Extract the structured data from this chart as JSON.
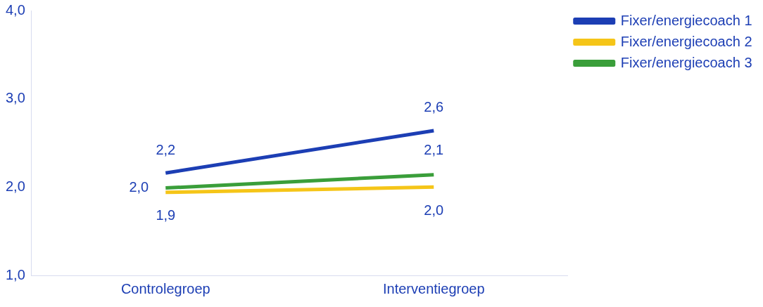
{
  "chart_data": {
    "type": "line",
    "categories": [
      "Controlegroep",
      "Interventiegroep"
    ],
    "series": [
      {
        "name": "Fixer/energiecoach 1",
        "color": "#1c3eb4",
        "values": [
          2.16,
          2.64
        ],
        "value_labels": [
          "2,2",
          "2,6"
        ]
      },
      {
        "name": "Fixer/energiecoach 2",
        "color": "#f5c518",
        "values": [
          1.94,
          2.0
        ],
        "value_labels": [
          "1,9",
          "2,0"
        ]
      },
      {
        "name": "Fixer/energiecoach 3",
        "color": "#3a9e3a",
        "values": [
          1.99,
          2.14
        ],
        "value_labels": [
          "2,0",
          "2,1"
        ]
      }
    ],
    "ylim": [
      1,
      4
    ],
    "yticks": [
      {
        "value": 1,
        "label": "1,0"
      },
      {
        "value": 2,
        "label": "2,0"
      },
      {
        "value": 3,
        "label": "3,0"
      },
      {
        "value": 4,
        "label": "4,0"
      }
    ],
    "grid": false,
    "legend": "top right",
    "marker": "none",
    "line_style": "solid"
  }
}
